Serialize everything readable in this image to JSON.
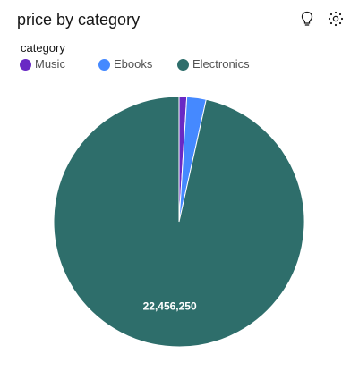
{
  "header": {
    "title": "price by category",
    "icons": [
      "lightbulb-icon",
      "settings-dots-icon"
    ]
  },
  "legend": {
    "title": "category"
  },
  "colors": {
    "Music": "#6929c4",
    "Ebooks": "#4589ff",
    "Electronics": "#2e6e6b"
  },
  "chart_data": {
    "type": "pie",
    "title": "price by category",
    "legend_title": "category",
    "legend_position": "top-left",
    "categories": [
      "Music",
      "Ebooks",
      "Electronics"
    ],
    "values": [
      230000,
      578000,
      22456250
    ],
    "data_labels": [
      "",
      "",
      "22,456,250"
    ]
  }
}
